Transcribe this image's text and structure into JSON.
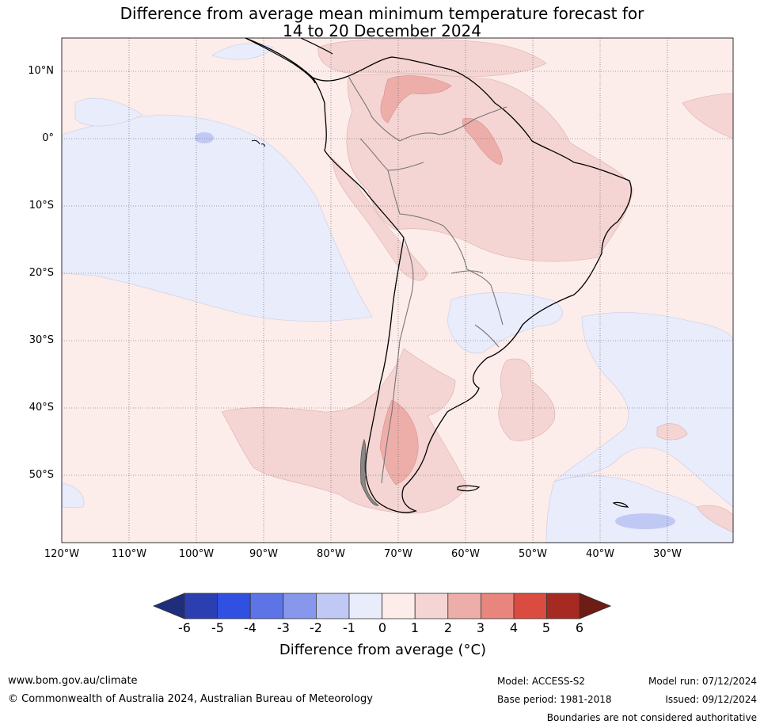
{
  "title_line1": "Difference from average mean minimum temperature forecast for",
  "title_line2": "14 to 20 December 2024",
  "latitudes": [
    "10°N",
    "0°",
    "10°S",
    "20°S",
    "30°S",
    "40°S",
    "50°S"
  ],
  "longitudes": [
    "120°W",
    "110°W",
    "100°W",
    "90°W",
    "80°W",
    "70°W",
    "60°W",
    "50°W",
    "40°W",
    "30°W"
  ],
  "colorbar": {
    "ticks": [
      "-6",
      "-5",
      "-4",
      "-3",
      "-2",
      "-1",
      "0",
      "1",
      "2",
      "3",
      "4",
      "5",
      "6"
    ],
    "colors": [
      "#1f2e7a",
      "#2b3fb0",
      "#2f50e0",
      "#5c74e6",
      "#8798ec",
      "#c0c8f4",
      "#e8ecfb",
      "#fcecea",
      "#f4d5d3",
      "#edaeaa",
      "#e8857d",
      "#d94c3f",
      "#a72a22",
      "#6e1c16"
    ],
    "label": "Difference from average (°C)"
  },
  "footer": {
    "website": "www.bom.gov.au/climate",
    "copyright": "© Commonwealth of Australia 2024, Australian Bureau of Meteorology",
    "model": "Model: ACCESS-S2",
    "base_period": "Base period: 1981-2018",
    "model_run": "Model run: 07/12/2024",
    "issued": "Issued: 09/12/2024",
    "disclaimer": "Boundaries are not considered authoritative"
  }
}
